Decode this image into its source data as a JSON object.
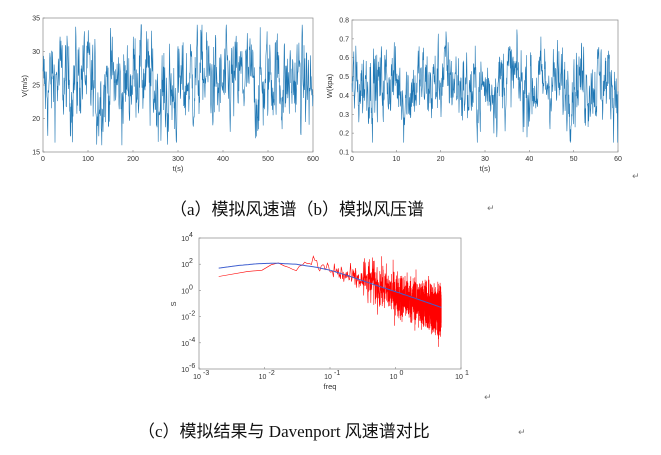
{
  "chart_data": [
    {
      "type": "line",
      "xlabel": "t(s)",
      "ylabel": "V(m/s)",
      "xlim": [
        0,
        600
      ],
      "ylim": [
        15,
        35
      ],
      "xticks": [
        "0",
        "100",
        "200",
        "300",
        "400",
        "500",
        "600"
      ],
      "yticks": [
        "15",
        "20",
        "25",
        "30",
        "35"
      ],
      "color": "#1f77b4",
      "series": [
        {
          "x": [
            0,
            30,
            60,
            90,
            120,
            150,
            180,
            210,
            240,
            270,
            300,
            330,
            360,
            390,
            420,
            450,
            480,
            510,
            540,
            570,
            600
          ],
          "values": [
            24,
            26,
            25,
            27,
            23,
            26,
            24,
            28,
            25,
            23,
            24,
            26,
            27,
            24,
            25,
            26,
            24,
            27,
            25,
            26,
            24
          ]
        }
      ],
      "mean": 25,
      "range": [
        16,
        34
      ]
    },
    {
      "type": "line",
      "xlabel": "t(s)",
      "ylabel": "W(kpa)",
      "xlim": [
        0,
        60
      ],
      "ylim": [
        0.1,
        0.8
      ],
      "xticks": [
        "0",
        "10",
        "20",
        "30",
        "40",
        "50",
        "60"
      ],
      "yticks": [
        "0.1",
        "0.2",
        "0.3",
        "0.4",
        "0.5",
        "0.6",
        "0.7",
        "0.8"
      ],
      "color": "#1f77b4",
      "series": [
        {
          "x": [
            0,
            3,
            6,
            9,
            12,
            15,
            18,
            21,
            24,
            27,
            30,
            33,
            36,
            39,
            42,
            45,
            48,
            51,
            54,
            57,
            60
          ],
          "values": [
            0.42,
            0.48,
            0.45,
            0.5,
            0.4,
            0.47,
            0.44,
            0.52,
            0.46,
            0.41,
            0.43,
            0.47,
            0.5,
            0.44,
            0.45,
            0.48,
            0.43,
            0.5,
            0.46,
            0.48,
            0.44
          ]
        }
      ],
      "mean": 0.45,
      "range": [
        0.15,
        0.78
      ]
    },
    {
      "type": "line",
      "xlabel": "freq",
      "ylabel": "S",
      "xscale": "log",
      "yscale": "log",
      "xlim": [
        0.001,
        10
      ],
      "ylim": [
        1e-06,
        10000
      ],
      "xticks": [
        "10",
        "10",
        "10",
        "10",
        "10"
      ],
      "xtick_exps": [
        "-3",
        "-2",
        "-1",
        "0",
        "1"
      ],
      "yticks": [
        "10",
        "10",
        "10",
        "10",
        "10",
        "10"
      ],
      "ytick_exps": [
        "-6",
        "-4",
        "-2",
        "0",
        "2",
        "4"
      ],
      "series": [
        {
          "color": "#4060d0",
          "x": [
            0.002,
            0.004,
            0.008,
            0.015,
            0.03,
            0.06,
            0.1,
            0.2,
            0.5,
            1,
            2,
            5
          ],
          "values": [
            50,
            80,
            110,
            120,
            100,
            60,
            35,
            12,
            2.5,
            0.8,
            0.25,
            0.05
          ]
        },
        {
          "color": "#ff0000",
          "x": [
            0.002,
            0.004,
            0.006,
            0.01,
            0.02,
            0.03,
            0.05,
            0.1,
            0.2,
            0.5,
            1,
            2,
            5
          ],
          "values": [
            8,
            30,
            20,
            60,
            100,
            40,
            150,
            35,
            10,
            3,
            0.5,
            0.15,
            0.02
          ]
        }
      ]
    }
  ],
  "captions": {
    "ab": "（a）模拟风速谱（b）模拟风压谱",
    "c": "（c）模拟结果与 Davenport 风速谱对比"
  },
  "return_mark": "↵"
}
